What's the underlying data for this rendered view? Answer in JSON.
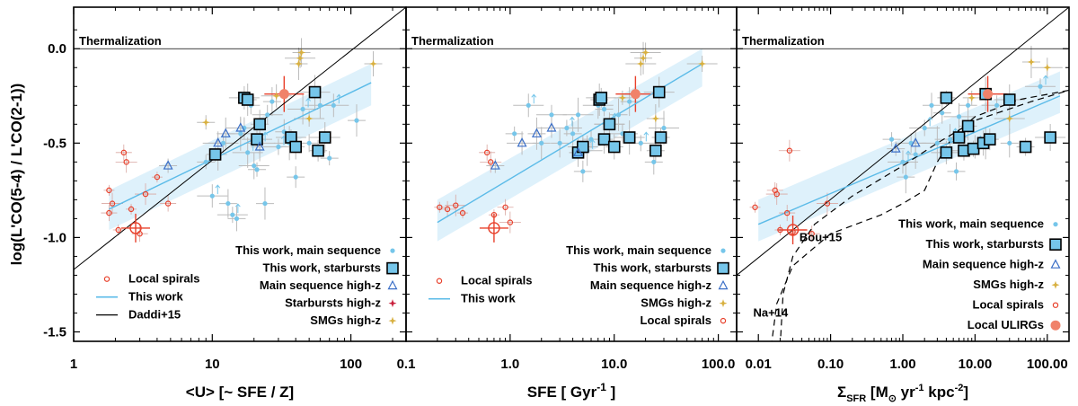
{
  "colors": {
    "local_spiral": "#e8402b",
    "this_work_line": "#5bbbe8",
    "band": "#d8eefa",
    "daddi": "#000000",
    "ms_point": "#76c6ea",
    "box_fill": "#76c6ea",
    "ms_highz": "#3b6fc7",
    "sb_highz": "#c8203c",
    "smg": "#d8b040",
    "ulirg": "#f0826a",
    "err": "#bbbbbb"
  },
  "y_axis_title": "log(L'CO(5-4) / L'CO(2-1))",
  "chart_data": [
    {
      "type": "scatter",
      "panel": "u",
      "xscale": "log",
      "xlim": [
        1,
        250
      ],
      "ylim": [
        -1.55,
        0.22
      ],
      "xticks": [
        1,
        10,
        100
      ],
      "xtick_labels": [
        "1",
        "10",
        "100"
      ],
      "yticks": [
        0,
        -0.5,
        -1.0,
        -1.5
      ],
      "ytick_labels": [
        "0.0",
        "-0.5",
        "-1.0",
        "-1.5"
      ],
      "xlabel": "<U> [~ SFE / Z]",
      "ylabel": "log(L'CO(5-4) / L'CO(2-1))",
      "thermal_label": "Thermalization",
      "band": {
        "x1": 1.8,
        "y1_lo": -0.96,
        "y1_hi": -0.75,
        "x2": 140,
        "y2_lo": -0.3,
        "y2_hi": -0.08
      },
      "this_work_line": {
        "x": [
          1.8,
          140
        ],
        "y": [
          -0.85,
          -0.18
        ]
      },
      "daddi_line": {
        "x": [
          1,
          250
        ],
        "y": [
          -1.17,
          0.22
        ]
      },
      "series": [
        {
          "name": "Local spirals",
          "marker": "ocircle",
          "color": "#e8402b",
          "points": [
            [
              1.8,
              -0.75
            ],
            [
              1.8,
              -0.87
            ],
            [
              1.9,
              -0.82
            ],
            [
              2.1,
              -0.96
            ],
            [
              2.3,
              -0.55
            ],
            [
              2.4,
              -0.6
            ],
            [
              2.6,
              -0.85
            ],
            [
              3.0,
              -0.98
            ],
            [
              3.3,
              -0.77
            ],
            [
              4.0,
              -0.68
            ],
            [
              4.8,
              -0.82
            ]
          ]
        },
        {
          "name": "Local spiral mean",
          "marker": "bigcross",
          "color": "#e8402b",
          "points": [
            [
              2.8,
              -0.95
            ]
          ]
        },
        {
          "name": "This work, main sequence",
          "marker": "dot",
          "color": "#76c6ea",
          "points": [
            [
              9,
              -0.6
            ],
            [
              10,
              -0.78
            ],
            [
              11,
              -0.56
            ],
            [
              12,
              -0.5
            ],
            [
              13,
              -0.82
            ],
            [
              14,
              -0.88
            ],
            [
              15,
              -0.9
            ],
            [
              16,
              -0.45
            ],
            [
              17,
              -0.42
            ],
            [
              18,
              -0.55
            ],
            [
              19,
              -0.3
            ],
            [
              20,
              -0.62
            ],
            [
              21,
              -0.64
            ],
            [
              22,
              -0.5
            ],
            [
              24,
              -0.82
            ],
            [
              25,
              -0.35
            ],
            [
              27,
              -0.28
            ],
            [
              30,
              -0.52
            ],
            [
              33,
              -0.44
            ],
            [
              36,
              -0.5
            ],
            [
              40,
              -0.68
            ],
            [
              45,
              -0.32
            ],
            [
              50,
              -0.5
            ],
            [
              60,
              -0.3
            ],
            [
              70,
              -0.58
            ],
            [
              75,
              -0.3
            ],
            [
              110,
              -0.38
            ]
          ]
        },
        {
          "name": "This work, starbursts",
          "marker": "box",
          "color": "#76c6ea",
          "points": [
            [
              10.5,
              -0.56
            ],
            [
              17,
              -0.26
            ],
            [
              18,
              -0.27
            ],
            [
              21,
              -0.48
            ],
            [
              22,
              -0.4
            ],
            [
              37,
              -0.47
            ],
            [
              40,
              -0.52
            ],
            [
              55,
              -0.23
            ],
            [
              58,
              -0.54
            ],
            [
              65,
              -0.47
            ]
          ]
        },
        {
          "name": "Main sequence high-z",
          "marker": "tri",
          "color": "#3b6fc7",
          "points": [
            [
              4.8,
              -0.62
            ],
            [
              11,
              -0.5
            ],
            [
              12.5,
              -0.45
            ],
            [
              16,
              -0.42
            ],
            [
              22,
              -0.52
            ]
          ]
        },
        {
          "name": "Starbursts high-z",
          "marker": "star",
          "color": "#c8203c",
          "points": []
        },
        {
          "name": "SMGs high-z",
          "marker": "star",
          "color": "#d8b040",
          "points": [
            [
              9,
              -0.39
            ],
            [
              29,
              -0.25
            ],
            [
              42,
              -0.08
            ],
            [
              43,
              -0.05
            ],
            [
              44,
              -0.02
            ],
            [
              50,
              -0.37
            ],
            [
              145,
              -0.08
            ]
          ]
        },
        {
          "name": "Local ULIRGs",
          "marker": "bigdot",
          "color": "#f0826a",
          "points": [
            [
              33,
              -0.24
            ]
          ]
        }
      ],
      "legend_right": [
        "This work, main sequence",
        "This work, starbursts",
        "Main sequence high-z",
        "Starbursts high-z",
        "SMGs high-z"
      ],
      "legend_left": [
        "Local spirals",
        "This work",
        "Daddi+15"
      ]
    },
    {
      "type": "scatter",
      "panel": "sfe",
      "xscale": "log",
      "xlim": [
        0.1,
        150
      ],
      "ylim": [
        -1.55,
        0.22
      ],
      "xticks": [
        0.1,
        1,
        10,
        100
      ],
      "xtick_labels": [
        "0.1",
        "1.0",
        "10.0",
        "100.0"
      ],
      "xlabel": "SFE [ Gyr^-1 ]",
      "thermal_label": "Thermalization",
      "band": {
        "x1": 0.2,
        "y1_lo": -1.02,
        "y1_hi": -0.8,
        "x2": 70,
        "y2_lo": -0.2,
        "y2_hi": 0.0
      },
      "this_work_line": {
        "x": [
          0.2,
          70
        ],
        "y": [
          -0.92,
          -0.08
        ]
      },
      "series": [
        {
          "name": "Local spirals",
          "marker": "ocircle",
          "color": "#e8402b",
          "points": [
            [
              0.21,
              -0.84
            ],
            [
              0.25,
              -0.85
            ],
            [
              0.3,
              -0.83
            ],
            [
              0.35,
              -0.87
            ],
            [
              0.6,
              -0.55
            ],
            [
              0.65,
              -0.6
            ],
            [
              0.7,
              -0.88
            ],
            [
              0.9,
              -0.84
            ],
            [
              1.0,
              -0.92
            ]
          ]
        },
        {
          "name": "Local spiral mean",
          "marker": "bigcross",
          "color": "#e8402b",
          "points": [
            [
              0.7,
              -0.95
            ]
          ]
        },
        {
          "name": "This work, main sequence",
          "marker": "dot",
          "color": "#76c6ea",
          "points": [
            [
              1.1,
              -0.45
            ],
            [
              1.5,
              -0.3
            ],
            [
              2,
              -0.5
            ],
            [
              2.5,
              -0.35
            ],
            [
              3,
              -0.5
            ],
            [
              3.5,
              -0.42
            ],
            [
              4,
              -0.45
            ],
            [
              4.5,
              -0.35
            ],
            [
              5,
              -0.65
            ],
            [
              5.5,
              -0.54
            ],
            [
              6,
              -0.48
            ],
            [
              7,
              -0.3
            ],
            [
              8,
              -0.32
            ],
            [
              9,
              -0.4
            ],
            [
              11,
              -0.35
            ],
            [
              12,
              -0.45
            ],
            [
              14,
              -0.28
            ],
            [
              18,
              -0.5
            ],
            [
              24,
              -0.6
            ],
            [
              30,
              -0.42
            ]
          ]
        },
        {
          "name": "This work, starbursts",
          "marker": "box",
          "color": "#76c6ea",
          "points": [
            [
              4.5,
              -0.55
            ],
            [
              5,
              -0.52
            ],
            [
              7.2,
              -0.27
            ],
            [
              7.5,
              -0.26
            ],
            [
              8,
              -0.48
            ],
            [
              9,
              -0.4
            ],
            [
              10,
              -0.52
            ],
            [
              14,
              -0.47
            ],
            [
              25,
              -0.54
            ],
            [
              27,
              -0.23
            ],
            [
              28,
              -0.47
            ]
          ]
        },
        {
          "name": "Main sequence high-z",
          "marker": "tri",
          "color": "#3b6fc7",
          "points": [
            [
              0.72,
              -0.62
            ],
            [
              1.3,
              -0.5
            ],
            [
              1.8,
              -0.45
            ],
            [
              2.5,
              -0.42
            ],
            [
              4.5,
              -0.55
            ]
          ]
        },
        {
          "name": "SMGs high-z",
          "marker": "star",
          "color": "#d8b040",
          "points": [
            [
              12,
              -0.26
            ],
            [
              18,
              -0.08
            ],
            [
              19,
              -0.05
            ],
            [
              20,
              -0.02
            ],
            [
              25,
              -0.37
            ],
            [
              70,
              -0.08
            ]
          ]
        },
        {
          "name": "Local ULIRGs",
          "marker": "bigdot",
          "color": "#f0826a",
          "points": [
            [
              16,
              -0.24
            ]
          ]
        }
      ],
      "legend_right": [
        "This work, main sequence",
        "This work, starbursts",
        "Main sequence high-z",
        "SMGs high-z",
        "Local spirals"
      ],
      "legend_left": [
        "Local spirals",
        "This work"
      ]
    },
    {
      "type": "scatter",
      "panel": "sigma",
      "xscale": "log",
      "xlim": [
        0.005,
        200
      ],
      "ylim": [
        -1.55,
        0.22
      ],
      "xticks": [
        0.01,
        0.1,
        1,
        10,
        100
      ],
      "xtick_labels": [
        "0.01",
        "0.10",
        "1.00",
        "10.00",
        "100.00"
      ],
      "xlabel": "Σ SFR [M⊙ yr^-1 kpc^-2]",
      "thermal_label": "Thermalization",
      "band": {
        "x1": 0.01,
        "y1_lo": -1.02,
        "y1_hi": -0.8,
        "x2": 150,
        "y2_lo": -0.34,
        "y2_hi": -0.12
      },
      "this_work_line": {
        "x": [
          0.01,
          150
        ],
        "y": [
          -0.93,
          -0.25
        ]
      },
      "black_line": {
        "x": [
          0.005,
          200
        ],
        "y": [
          -1.2,
          0.22
        ]
      },
      "series": [
        {
          "name": "Local spirals",
          "marker": "ocircle",
          "color": "#e8402b",
          "points": [
            [
              0.009,
              -0.84
            ],
            [
              0.017,
              -0.75
            ],
            [
              0.018,
              -0.77
            ],
            [
              0.02,
              -0.96
            ],
            [
              0.025,
              -0.87
            ],
            [
              0.027,
              -0.54
            ],
            [
              0.03,
              -0.97
            ],
            [
              0.055,
              -0.98
            ],
            [
              0.09,
              -0.82
            ]
          ]
        },
        {
          "name": "Local spiral mean",
          "marker": "bigcross",
          "color": "#e8402b",
          "points": [
            [
              0.03,
              -0.96
            ]
          ]
        },
        {
          "name": "This work, main sequence",
          "marker": "dot",
          "color": "#76c6ea",
          "points": [
            [
              0.7,
              -0.48
            ],
            [
              1,
              -0.6
            ],
            [
              1.1,
              -0.68
            ],
            [
              1.3,
              -0.5
            ],
            [
              1.5,
              -0.56
            ],
            [
              2,
              -0.42
            ],
            [
              2.5,
              -0.3
            ],
            [
              3,
              -0.5
            ],
            [
              3.5,
              -0.34
            ],
            [
              4.5,
              -0.48
            ],
            [
              5.5,
              -0.65
            ],
            [
              6,
              -0.36
            ],
            [
              8,
              -0.3
            ],
            [
              10,
              -0.52
            ],
            [
              14,
              -0.5
            ],
            [
              20,
              -0.3
            ],
            [
              30,
              -0.5
            ],
            [
              80,
              -0.2
            ]
          ]
        },
        {
          "name": "This work, starbursts",
          "marker": "box",
          "color": "#76c6ea",
          "points": [
            [
              4,
              -0.26
            ],
            [
              4,
              -0.55
            ],
            [
              6,
              -0.47
            ],
            [
              7,
              -0.54
            ],
            [
              8,
              -0.41
            ],
            [
              9.5,
              -0.53
            ],
            [
              13,
              -0.5
            ],
            [
              14,
              -0.24
            ],
            [
              16,
              -0.48
            ],
            [
              30,
              -0.27
            ],
            [
              50,
              -0.52
            ],
            [
              110,
              -0.47
            ]
          ]
        },
        {
          "name": "Main sequence high-z",
          "marker": "tri",
          "color": "#3b6fc7",
          "points": [
            [
              0.8,
              -0.53
            ],
            [
              1.5,
              -0.5
            ]
          ]
        },
        {
          "name": "SMGs high-z",
          "marker": "star",
          "color": "#d8b040",
          "points": [
            [
              9,
              -0.26
            ],
            [
              30,
              -0.37
            ],
            [
              60,
              -0.07
            ],
            [
              100,
              -0.1
            ]
          ]
        },
        {
          "name": "Local ULIRGs",
          "marker": "bigdot",
          "color": "#f0826a",
          "points": [
            [
              15,
              -0.24
            ]
          ]
        }
      ],
      "legend_right": [
        "This work, main sequence",
        "This work, starbursts",
        "Main sequence high-z",
        "SMGs high-z",
        "Local spirals",
        "Local ULIRGs"
      ],
      "annotations": [
        "Bou+15",
        "Na+14"
      ]
    }
  ]
}
